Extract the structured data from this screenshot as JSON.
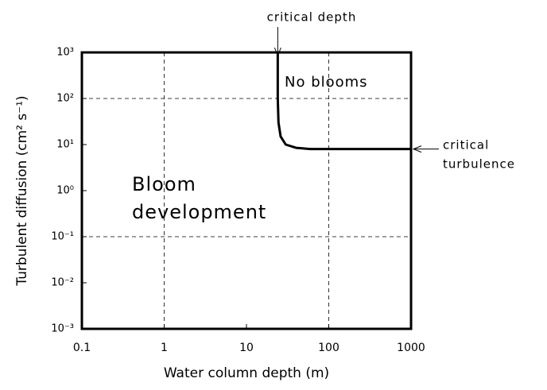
{
  "chart_data": {
    "type": "line",
    "xlabel": "Water column depth (m)",
    "ylabel": "Turbulent diffusion (cm² s⁻¹)",
    "x": [
      24,
      24,
      24.5,
      26,
      30,
      40,
      60,
      100,
      1000
    ],
    "series": [
      {
        "color": "#000000",
        "values": [
          1000,
          100,
          30,
          15,
          10,
          8.5,
          8,
          8,
          8
        ]
      }
    ],
    "xscale": "log",
    "yscale": "log",
    "xlim": [
      0.1,
      1000
    ],
    "ylim": [
      0.001,
      1000
    ],
    "xticks": [
      0.1,
      1,
      10,
      100,
      1000
    ],
    "yticks": [
      {
        "value": 0.001,
        "label": "10⁻³"
      },
      {
        "value": 0.01,
        "label": "10⁻²"
      },
      {
        "value": 0.1,
        "label": "10⁻¹"
      },
      {
        "value": 1,
        "label": "10⁰"
      },
      {
        "value": 10,
        "label": "10¹"
      },
      {
        "value": 100,
        "label": "10²"
      },
      {
        "value": 1000,
        "label": "10³"
      }
    ],
    "grid_x": [
      1,
      100
    ],
    "grid_y": [
      100,
      0.1
    ],
    "annotations": [
      {
        "text": "critical depth"
      },
      {
        "text": "critical"
      },
      {
        "text": "turbulence"
      },
      {
        "text": "No blooms"
      },
      {
        "text": "Bloom"
      },
      {
        "text": "development"
      }
    ]
  }
}
